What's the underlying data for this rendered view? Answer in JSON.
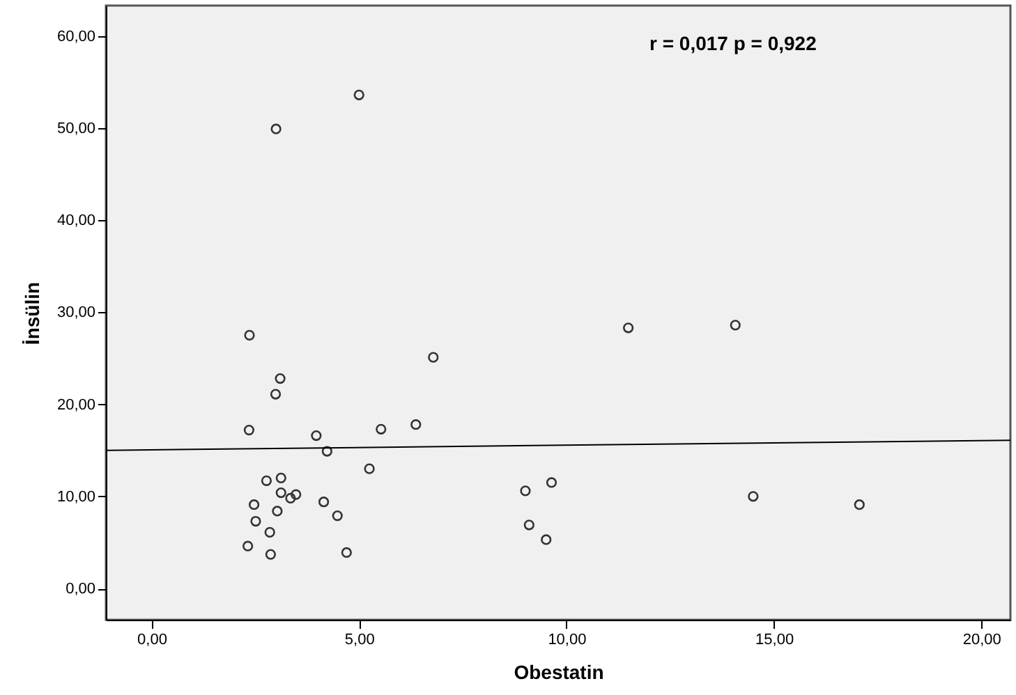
{
  "chart_data": {
    "type": "scatter",
    "xlabel": "Obestatin",
    "ylabel": "İnsülin",
    "annotations": [
      "r = 0,017     p = 0,922"
    ],
    "series": [
      {
        "color": "#333333",
        "marker": "circle",
        "x": [
          5.0,
          3.0,
          2.36,
          6.79,
          3.1,
          2.99,
          2.35,
          3.97,
          5.53,
          6.37,
          4.23,
          5.25,
          2.77,
          3.12,
          3.12,
          3.35,
          3.48,
          2.47,
          3.03,
          4.15,
          4.48,
          2.51,
          2.85,
          2.32,
          2.87,
          4.7,
          9.01,
          9.64,
          9.1,
          9.51,
          11.49,
          14.07,
          14.5,
          17.06
        ],
        "values": [
          53.6,
          49.9,
          27.5,
          25.1,
          22.8,
          21.1,
          17.2,
          16.6,
          17.3,
          17.8,
          14.9,
          13.0,
          11.7,
          12.0,
          10.4,
          9.8,
          10.2,
          9.1,
          8.4,
          9.4,
          7.9,
          7.3,
          6.1,
          4.6,
          3.7,
          3.9,
          10.6,
          11.5,
          6.9,
          5.3,
          28.3,
          28.6,
          10.0,
          9.1
        ]
      },
      {
        "type": "line",
        "color": "#000000",
        "marker": "none",
        "x": [
          -1.1,
          20.7
        ],
        "values": [
          15.0,
          16.1
        ]
      }
    ],
    "xlim": [
      -1.1,
      20.7
    ],
    "ylim": [
      -3.4,
      63.3
    ],
    "xticks": [
      {
        "value": 0,
        "label": "0,00"
      },
      {
        "value": 5,
        "label": "5,00"
      },
      {
        "value": 10,
        "label": "10,00"
      },
      {
        "value": 15,
        "label": "15,00"
      },
      {
        "value": 20,
        "label": "20,00"
      }
    ],
    "yticks": [
      {
        "value": 0,
        "label": "0,00"
      },
      {
        "value": 10,
        "label": "10,00"
      },
      {
        "value": 20,
        "label": "20,00"
      },
      {
        "value": 30,
        "label": "30,00"
      },
      {
        "value": 40,
        "label": "40,00"
      },
      {
        "value": 50,
        "label": "50,00"
      },
      {
        "value": 60,
        "label": "60,00"
      }
    ],
    "grid": false
  }
}
